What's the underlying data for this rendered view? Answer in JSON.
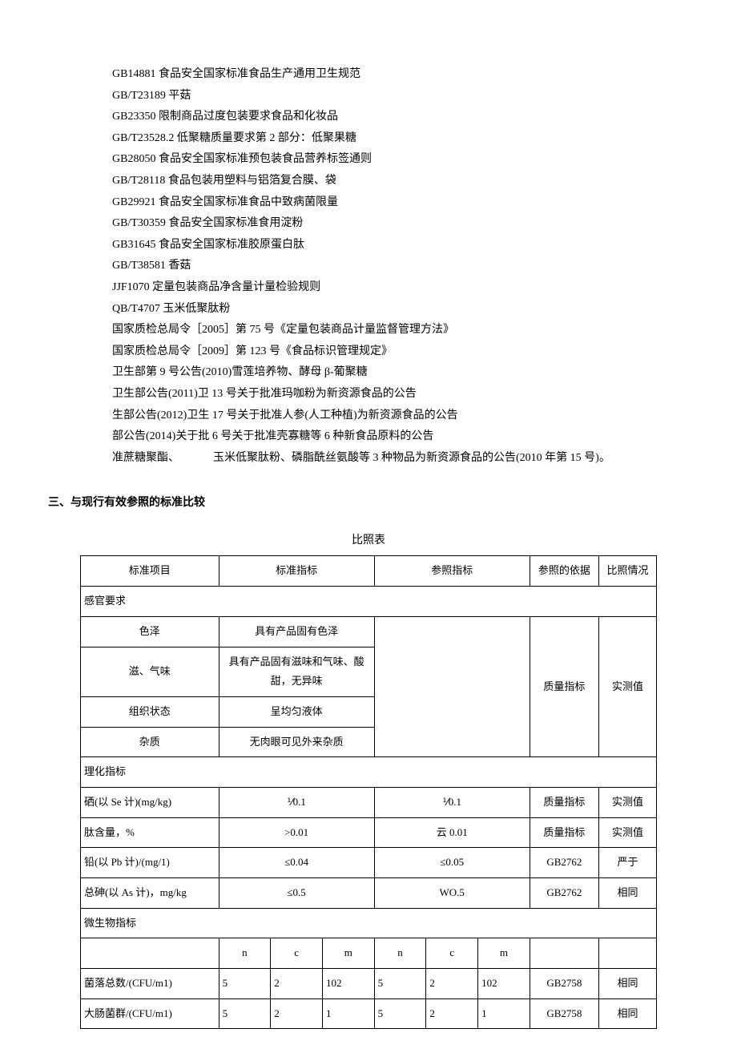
{
  "references": [
    "GB14881 食品安全国家标准食品生产通用卫生规范",
    "GB/T23189 平菇",
    "GB23350 限制商品过度包装要求食品和化妆品",
    "GB/T23528.2 低聚糖质量要求第 2 部分：低聚果糖",
    "GB28050 食品安全国家标准预包装食品营养标签通则",
    "GB/T28118 食品包装用塑料与铝箔复合膜、袋",
    "GB29921 食品安全国家标准食品中致病菌限量",
    "GB/T30359 食品安全国家标准食用淀粉",
    "GB31645 食品安全国家标准胶原蛋白肽",
    "GB/T38581 香菇",
    "JJF1070 定量包装商品净含量计量检验规则",
    "QB/T4707 玉米低聚肽粉",
    "国家质检总局令［2005］第 75 号《定量包装商品计量监督管理方法》",
    "国家质检总局令［2009］第 123 号《食品标识管理规定》",
    "卫生部第 9 号公告(2010)雪莲培养物、酵母 β-葡聚糖",
    "卫生部公告(2011)卫 13 号关于批准玛咖粉为新资源食品的公告",
    "生部公告(2012)卫生 17 号关于批准人参(人工种植)为新资源食品的公告",
    "部公告(2014)关于批 6 号关于批准壳寡糖等 6 种新食品原料的公告",
    "准蔗糖聚酯、   玉米低聚肽粉、磷脂酰丝氨酸等 3 种物品为新资源食品的公告(2010 年第 15 号)。"
  ],
  "section_heading": "三、与现行有效参照的标准比较",
  "table": {
    "title": "比照表",
    "headers": [
      "标准项目",
      "标准指标",
      "参照指标",
      "参照的依据",
      "比照情况"
    ],
    "group1": {
      "label": "感官要求",
      "basis": "质量指标",
      "compare": "实测值",
      "rows": [
        {
          "name": "色泽",
          "std": "具有产品固有色泽"
        },
        {
          "name": "滋、气味",
          "std": "具有产品固有滋味和气味、酸甜，无异味"
        },
        {
          "name": "组织状态",
          "std": "呈均匀液体"
        },
        {
          "name": "杂质",
          "std": "无肉眼可见外来杂质"
        }
      ]
    },
    "group2": {
      "label": "理化指标",
      "rows": [
        {
          "name": "硒(以 Se 计)(mg/kg)",
          "std": "⅟0.1",
          "ref": "⅟0.1",
          "basis": "质量指标",
          "compare": "实测值"
        },
        {
          "name": "肽含量，%",
          "std": ">0.01",
          "ref": "云 0.01",
          "basis": "质量指标",
          "compare": "实测值"
        },
        {
          "name": "铅(以 Pb 计)/(mg/1)",
          "std": "≤0.04",
          "ref": "≤0.05",
          "basis": "GB2762",
          "compare": "严于"
        },
        {
          "name": "总砷(以 As 计)，mg/kg",
          "std": "≤0.5",
          "ref": "WO.5",
          "basis": "GB2762",
          "compare": "相同"
        }
      ]
    },
    "group3": {
      "label": "微生物指标",
      "sub_headers": [
        "n",
        "c",
        "m",
        "n",
        "c",
        "m"
      ],
      "rows": [
        {
          "name": "菌落总数/(CFU/m1)",
          "v": [
            "5",
            "2",
            "102",
            "5",
            "2",
            "102"
          ],
          "basis": "GB2758",
          "compare": "相同"
        },
        {
          "name": "大肠菌群/(CFU/m1)",
          "v": [
            "5",
            "2",
            "1",
            "5",
            "2",
            "1"
          ],
          "basis": "GB2758",
          "compare": "相同"
        }
      ]
    }
  }
}
